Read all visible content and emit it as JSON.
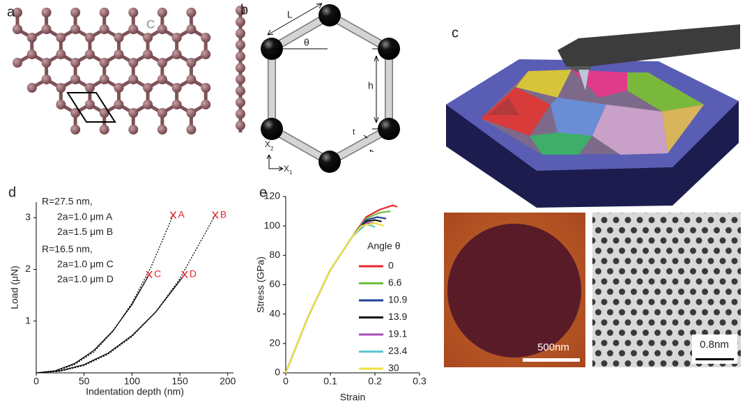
{
  "panels": {
    "a": {
      "label": "a",
      "atom": "C"
    },
    "b": {
      "label": "b",
      "L": "L",
      "theta": "θ",
      "h": "h",
      "t": "t",
      "x2": "X",
      "x2sub": "2",
      "x1": "X",
      "x1sub": "1"
    },
    "c": {
      "label": "c",
      "scale1": "500nm",
      "scale2": "0.8nm"
    }
  },
  "chart_data": [
    {
      "type": "line",
      "panel_label": "d",
      "x_label": "Indentation depth (nm)",
      "y_label": "Load (μN)",
      "xlim": [
        0,
        206
      ],
      "ylim": [
        0,
        3.3
      ],
      "xticks": [
        0,
        50,
        100,
        150,
        200
      ],
      "yticks": [
        1,
        2,
        3
      ],
      "annotations": [
        "R=27.5 nm,",
        "2a=1.0 μm A",
        "2a=1.5 μm B",
        "R=16.5 nm,",
        "2a=1.0 μm C",
        "2a=1.0 μm D"
      ],
      "series": [
        {
          "color": "#000000",
          "dash": false,
          "x": [
            0,
            20,
            40,
            60,
            80,
            100,
            118
          ],
          "values": [
            0,
            0.04,
            0.18,
            0.43,
            0.81,
            1.32,
            1.9
          ]
        },
        {
          "color": "#000000",
          "dash": true,
          "x": [
            0,
            20,
            40,
            60,
            80,
            100,
            120,
            143
          ],
          "values": [
            0,
            0.03,
            0.16,
            0.4,
            0.8,
            1.35,
            2.05,
            3.05
          ]
        },
        {
          "color": "#000000",
          "dash": false,
          "x": [
            0,
            25,
            50,
            75,
            100,
            125,
            155
          ],
          "values": [
            0,
            0.04,
            0.16,
            0.38,
            0.72,
            1.18,
            1.9
          ]
        },
        {
          "color": "#000000",
          "dash": true,
          "x": [
            0,
            25,
            50,
            75,
            100,
            125,
            150,
            187
          ],
          "values": [
            0,
            0.03,
            0.14,
            0.36,
            0.7,
            1.18,
            1.82,
            3.05
          ]
        }
      ],
      "markers": {
        "color": "#e0262b",
        "labels": [
          "A",
          "B",
          "C",
          "D"
        ],
        "x": [
          143,
          187,
          118,
          155
        ],
        "values": [
          3.05,
          3.05,
          1.9,
          1.9
        ]
      }
    },
    {
      "type": "line",
      "panel_label": "e",
      "x_label": "Strain",
      "y_label": "Stress (GPa)",
      "legend_title": "Angle θ",
      "xlim": [
        0,
        0.3
      ],
      "ylim": [
        0,
        120
      ],
      "xticks": [
        0,
        0.1,
        0.2,
        0.3
      ],
      "yticks": [
        0,
        20,
        40,
        60,
        80,
        100,
        120
      ],
      "series": [
        {
          "name": "0",
          "color": "#e8262a",
          "x": [
            0,
            0.05,
            0.1,
            0.15,
            0.18,
            0.21,
            0.24,
            0.25
          ],
          "values": [
            0,
            38,
            70,
            93,
            106,
            111,
            114,
            113
          ]
        },
        {
          "name": "6.6",
          "color": "#6cbf3f",
          "x": [
            0,
            0.05,
            0.1,
            0.15,
            0.18,
            0.21,
            0.235
          ],
          "values": [
            0,
            38,
            70,
            93,
            105,
            109,
            110
          ]
        },
        {
          "name": "10.9",
          "color": "#1f3f9a",
          "x": [
            0,
            0.05,
            0.1,
            0.15,
            0.18,
            0.205,
            0.225
          ],
          "values": [
            0,
            38,
            70,
            93,
            104,
            106,
            105
          ]
        },
        {
          "name": "13.9",
          "color": "#111111",
          "x": [
            0,
            0.05,
            0.1,
            0.15,
            0.18,
            0.2,
            0.215
          ],
          "values": [
            0,
            38,
            70,
            93,
            103,
            104,
            103
          ]
        },
        {
          "name": "19.1",
          "color": "#a34fb5",
          "x": [
            0,
            0.05,
            0.1,
            0.15,
            0.18,
            0.2,
            0.21
          ],
          "values": [
            0,
            38,
            70,
            93,
            102,
            102,
            101
          ]
        },
        {
          "name": "23.4",
          "color": "#5cc7d3",
          "x": [
            0,
            0.05,
            0.1,
            0.15,
            0.18,
            0.195,
            0.2
          ],
          "values": [
            0,
            38,
            70,
            93,
            101,
            100,
            99
          ]
        },
        {
          "name": "30",
          "color": "#f0e23a",
          "x": [
            0,
            0.05,
            0.1,
            0.15,
            0.17,
            0.2,
            0.22
          ],
          "values": [
            0,
            38,
            70,
            93,
            100,
            102,
            100
          ]
        }
      ]
    }
  ]
}
